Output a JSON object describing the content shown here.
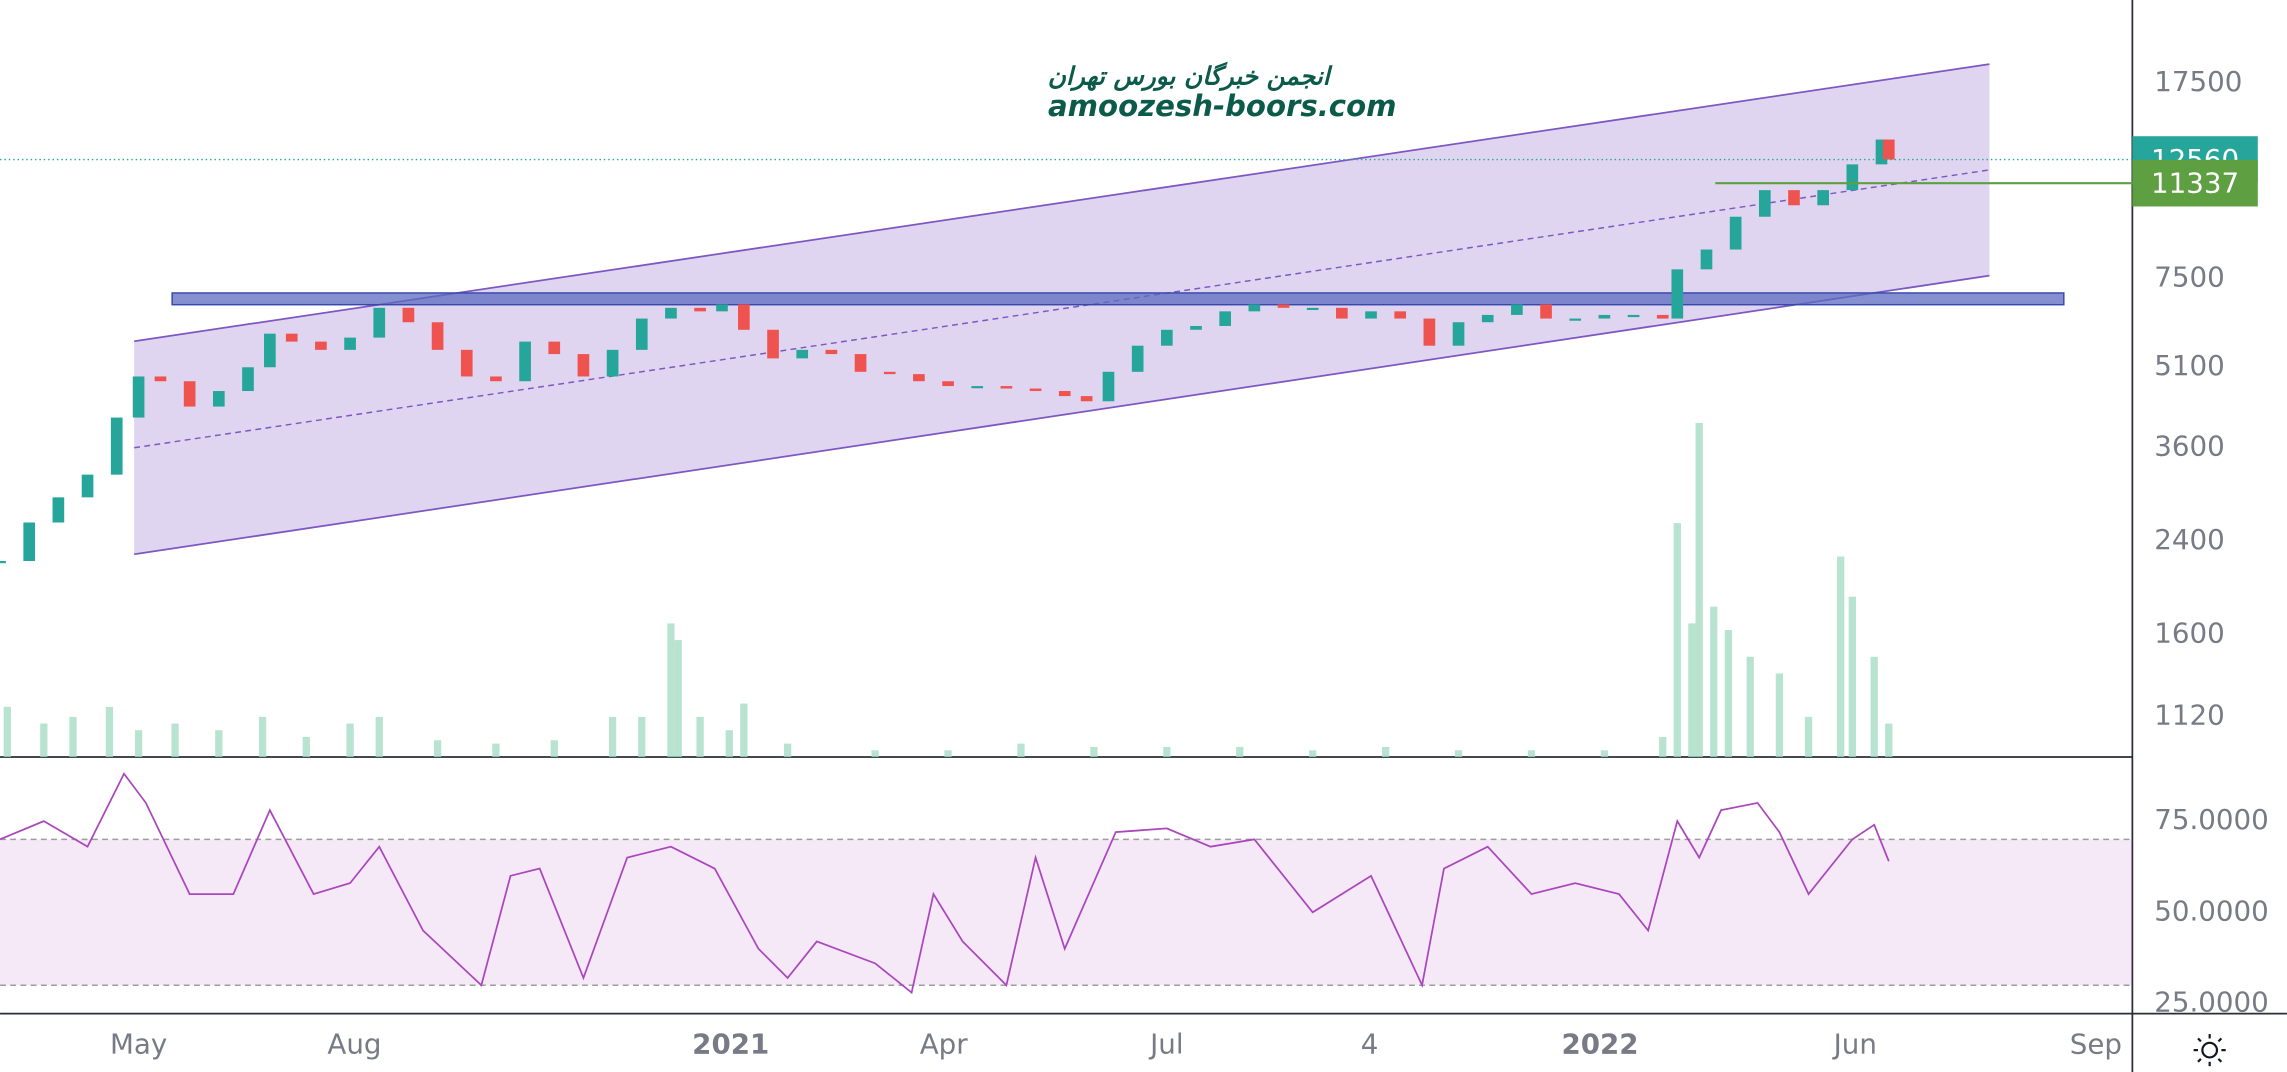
{
  "chart_data": [
    {
      "type": "candlestick",
      "watermark": [
        "انجمن خبرگان بورس تهران",
        "amoozesh-boors.com"
      ],
      "log_scale": true,
      "xlim": [
        0,
        1462
      ],
      "xticks": [
        {
          "value": 95,
          "label": "May"
        },
        {
          "value": 243,
          "label": "Aug"
        },
        {
          "value": 501,
          "label": "2021"
        },
        {
          "value": 647,
          "label": "Apr"
        },
        {
          "value": 800,
          "label": "Jul"
        },
        {
          "value": 939,
          "label": "4"
        },
        {
          "value": 1097,
          "label": "2022"
        },
        {
          "value": 1272,
          "label": "Jun"
        },
        {
          "value": 1437,
          "label": "Sep"
        }
      ],
      "ylim": [
        940,
        25100
      ],
      "yticks": [
        17500,
        7500,
        5100,
        3600,
        2400,
        1600,
        1120
      ],
      "up_color": "#26a69a",
      "down_color": "#ef5350",
      "x": [
        0,
        20,
        40,
        60,
        80,
        95,
        110,
        130,
        150,
        170,
        185,
        200,
        220,
        240,
        260,
        280,
        300,
        320,
        340,
        360,
        380,
        400,
        420,
        440,
        460,
        480,
        495,
        510,
        530,
        550,
        570,
        590,
        610,
        630,
        650,
        670,
        690,
        710,
        730,
        745,
        760,
        780,
        800,
        820,
        840,
        860,
        880,
        900,
        920,
        940,
        960,
        980,
        1000,
        1020,
        1040,
        1060,
        1080,
        1100,
        1120,
        1140,
        1150,
        1170,
        1190,
        1210,
        1230,
        1250,
        1270,
        1290,
        1295
      ],
      "values": [
        2200,
        2600,
        2900,
        3200,
        4100,
        4900,
        4800,
        4300,
        4600,
        5100,
        5900,
        5700,
        5500,
        5800,
        6600,
        6200,
        5500,
        4900,
        4800,
        5700,
        5400,
        4900,
        5500,
        6300,
        6600,
        6500,
        6700,
        6000,
        5300,
        5500,
        5400,
        5000,
        4950,
        4800,
        4700,
        4700,
        4650,
        4600,
        4500,
        4400,
        5000,
        5600,
        6000,
        6100,
        6500,
        6700,
        6600,
        6600,
        6300,
        6500,
        6300,
        5600,
        6200,
        6400,
        6700,
        6300,
        6300,
        6400,
        6400,
        6300,
        7800,
        8500,
        9800,
        11000,
        10300,
        11000,
        12300,
        13700,
        12560
      ],
      "volume": {
        "color": "#a8dcc5",
        "ylim": [
          0,
          100
        ],
        "x": [
          5,
          30,
          50,
          75,
          95,
          120,
          150,
          180,
          210,
          240,
          260,
          300,
          340,
          380,
          420,
          440,
          460,
          465,
          480,
          500,
          510,
          540,
          600,
          650,
          700,
          750,
          800,
          850,
          900,
          950,
          1000,
          1050,
          1100,
          1140,
          1150,
          1160,
          1165,
          1175,
          1185,
          1200,
          1220,
          1240,
          1262,
          1270,
          1285,
          1295
        ],
        "values": [
          15,
          10,
          12,
          15,
          8,
          10,
          8,
          12,
          6,
          10,
          12,
          5,
          4,
          5,
          12,
          12,
          40,
          35,
          12,
          8,
          16,
          4,
          2,
          2,
          4,
          3,
          3,
          3,
          2,
          3,
          2,
          2,
          2,
          6,
          70,
          40,
          100,
          45,
          38,
          30,
          25,
          12,
          60,
          48,
          30,
          10
        ]
      },
      "channel": {
        "x": [
          92,
          1364
        ],
        "upper": [
          5710,
          19000
        ],
        "lower": [
          2265,
          7590
        ],
        "color": "#7e57c2"
      },
      "zone": {
        "x": [
          118,
          1415
        ],
        "low": 6690,
        "high": 7040,
        "color": "#5c6bc0"
      },
      "price_labels": [
        {
          "value": 12560,
          "color": "#26a69a"
        },
        {
          "value": 11337,
          "color": "#5d9f41",
          "from_x": 1176
        }
      ]
    },
    {
      "type": "line",
      "color": "#ab47bc",
      "ylim": [
        22.2,
        92.6
      ],
      "yticks": [
        {
          "value": 75,
          "label": "75.0000"
        },
        {
          "value": 50,
          "label": "50.0000"
        },
        {
          "value": 25,
          "label": "25.0000"
        }
      ],
      "band": [
        30,
        70
      ],
      "x": [
        0,
        30,
        60,
        85,
        100,
        130,
        160,
        185,
        215,
        240,
        260,
        290,
        330,
        350,
        370,
        400,
        430,
        460,
        490,
        520,
        540,
        560,
        600,
        625,
        640,
        660,
        690,
        710,
        730,
        765,
        800,
        830,
        860,
        880,
        900,
        940,
        975,
        990,
        1020,
        1050,
        1080,
        1110,
        1130,
        1150,
        1165,
        1180,
        1205,
        1220,
        1240,
        1270,
        1285,
        1295
      ],
      "values": [
        70,
        75,
        68,
        88,
        80,
        55,
        55,
        78,
        55,
        58,
        68,
        45,
        30,
        60,
        62,
        32,
        65,
        68,
        62,
        40,
        32,
        42,
        36,
        28,
        55,
        42,
        30,
        65,
        40,
        72,
        73,
        68,
        70,
        60,
        50,
        60,
        30,
        62,
        68,
        55,
        58,
        55,
        45,
        75,
        65,
        78,
        80,
        72,
        55,
        70,
        74,
        64
      ]
    }
  ]
}
